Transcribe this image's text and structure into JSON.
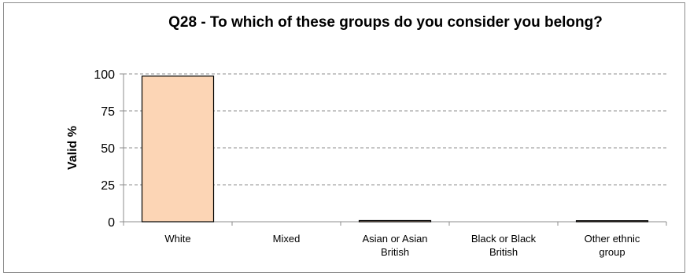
{
  "chart_data": {
    "type": "bar",
    "title": "Q28 - To which of these groups do you consider you belong?",
    "ylabel": "Valid %",
    "xlabel": "",
    "ylim": [
      0,
      100
    ],
    "yticks": [
      0,
      25,
      50,
      75,
      100
    ],
    "grid": true,
    "categories": [
      [
        "White"
      ],
      [
        "Mixed"
      ],
      [
        "Asian or Asian",
        "British"
      ],
      [
        "Black or Black",
        "British"
      ],
      [
        "Other ethnic",
        "group"
      ]
    ],
    "values": [
      98.5,
      0,
      0.8,
      0,
      0.7
    ],
    "colors": {
      "bar_fill": "#fcd5b5",
      "bar_stroke": "#000000",
      "grid": "#8c8c8c",
      "axis": "#8c8c8c"
    }
  }
}
